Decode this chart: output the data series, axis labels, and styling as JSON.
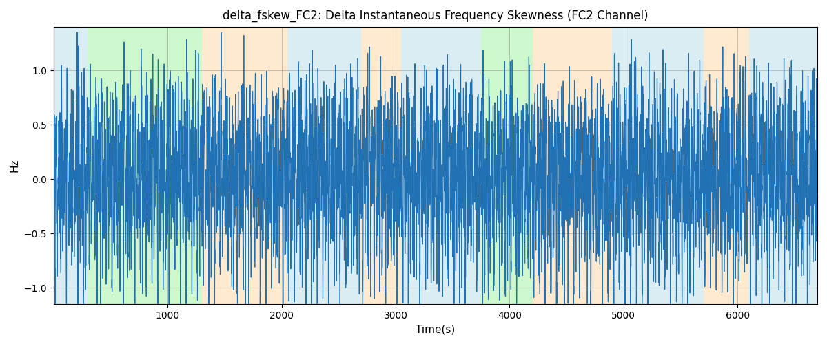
{
  "title": "delta_fskew_FC2: Delta Instantaneous Frequency Skewness (FC2 Channel)",
  "xlabel": "Time(s)",
  "ylabel": "Hz",
  "xlim": [
    0,
    6700
  ],
  "ylim": [
    -1.15,
    1.4
  ],
  "yticks": [
    -1.0,
    -0.5,
    0.0,
    0.5,
    1.0
  ],
  "xticks": [
    1000,
    2000,
    3000,
    4000,
    5000,
    6000
  ],
  "grid": true,
  "line_color": "#2171b5",
  "line_width": 0.9,
  "background_color": "#ffffff",
  "bands": [
    {
      "xmin": 0,
      "xmax": 300,
      "color": "#add8e6",
      "alpha": 0.45
    },
    {
      "xmin": 300,
      "xmax": 1300,
      "color": "#90ee90",
      "alpha": 0.45
    },
    {
      "xmin": 1300,
      "xmax": 2050,
      "color": "#ffd8a8",
      "alpha": 0.55
    },
    {
      "xmin": 2050,
      "xmax": 2700,
      "color": "#add8e6",
      "alpha": 0.45
    },
    {
      "xmin": 2700,
      "xmax": 3050,
      "color": "#ffd8a8",
      "alpha": 0.55
    },
    {
      "xmin": 3050,
      "xmax": 3750,
      "color": "#add8e6",
      "alpha": 0.45
    },
    {
      "xmin": 3750,
      "xmax": 4200,
      "color": "#90ee90",
      "alpha": 0.45
    },
    {
      "xmin": 4200,
      "xmax": 4900,
      "color": "#ffd8a8",
      "alpha": 0.55
    },
    {
      "xmin": 4900,
      "xmax": 5700,
      "color": "#add8e6",
      "alpha": 0.45
    },
    {
      "xmin": 5700,
      "xmax": 6100,
      "color": "#ffd8a8",
      "alpha": 0.55
    },
    {
      "xmin": 6100,
      "xmax": 6700,
      "color": "#add8e6",
      "alpha": 0.45
    }
  ],
  "seed": 42,
  "n_points": 6600,
  "figsize": [
    12.0,
    5.0
  ],
  "dpi": 100
}
